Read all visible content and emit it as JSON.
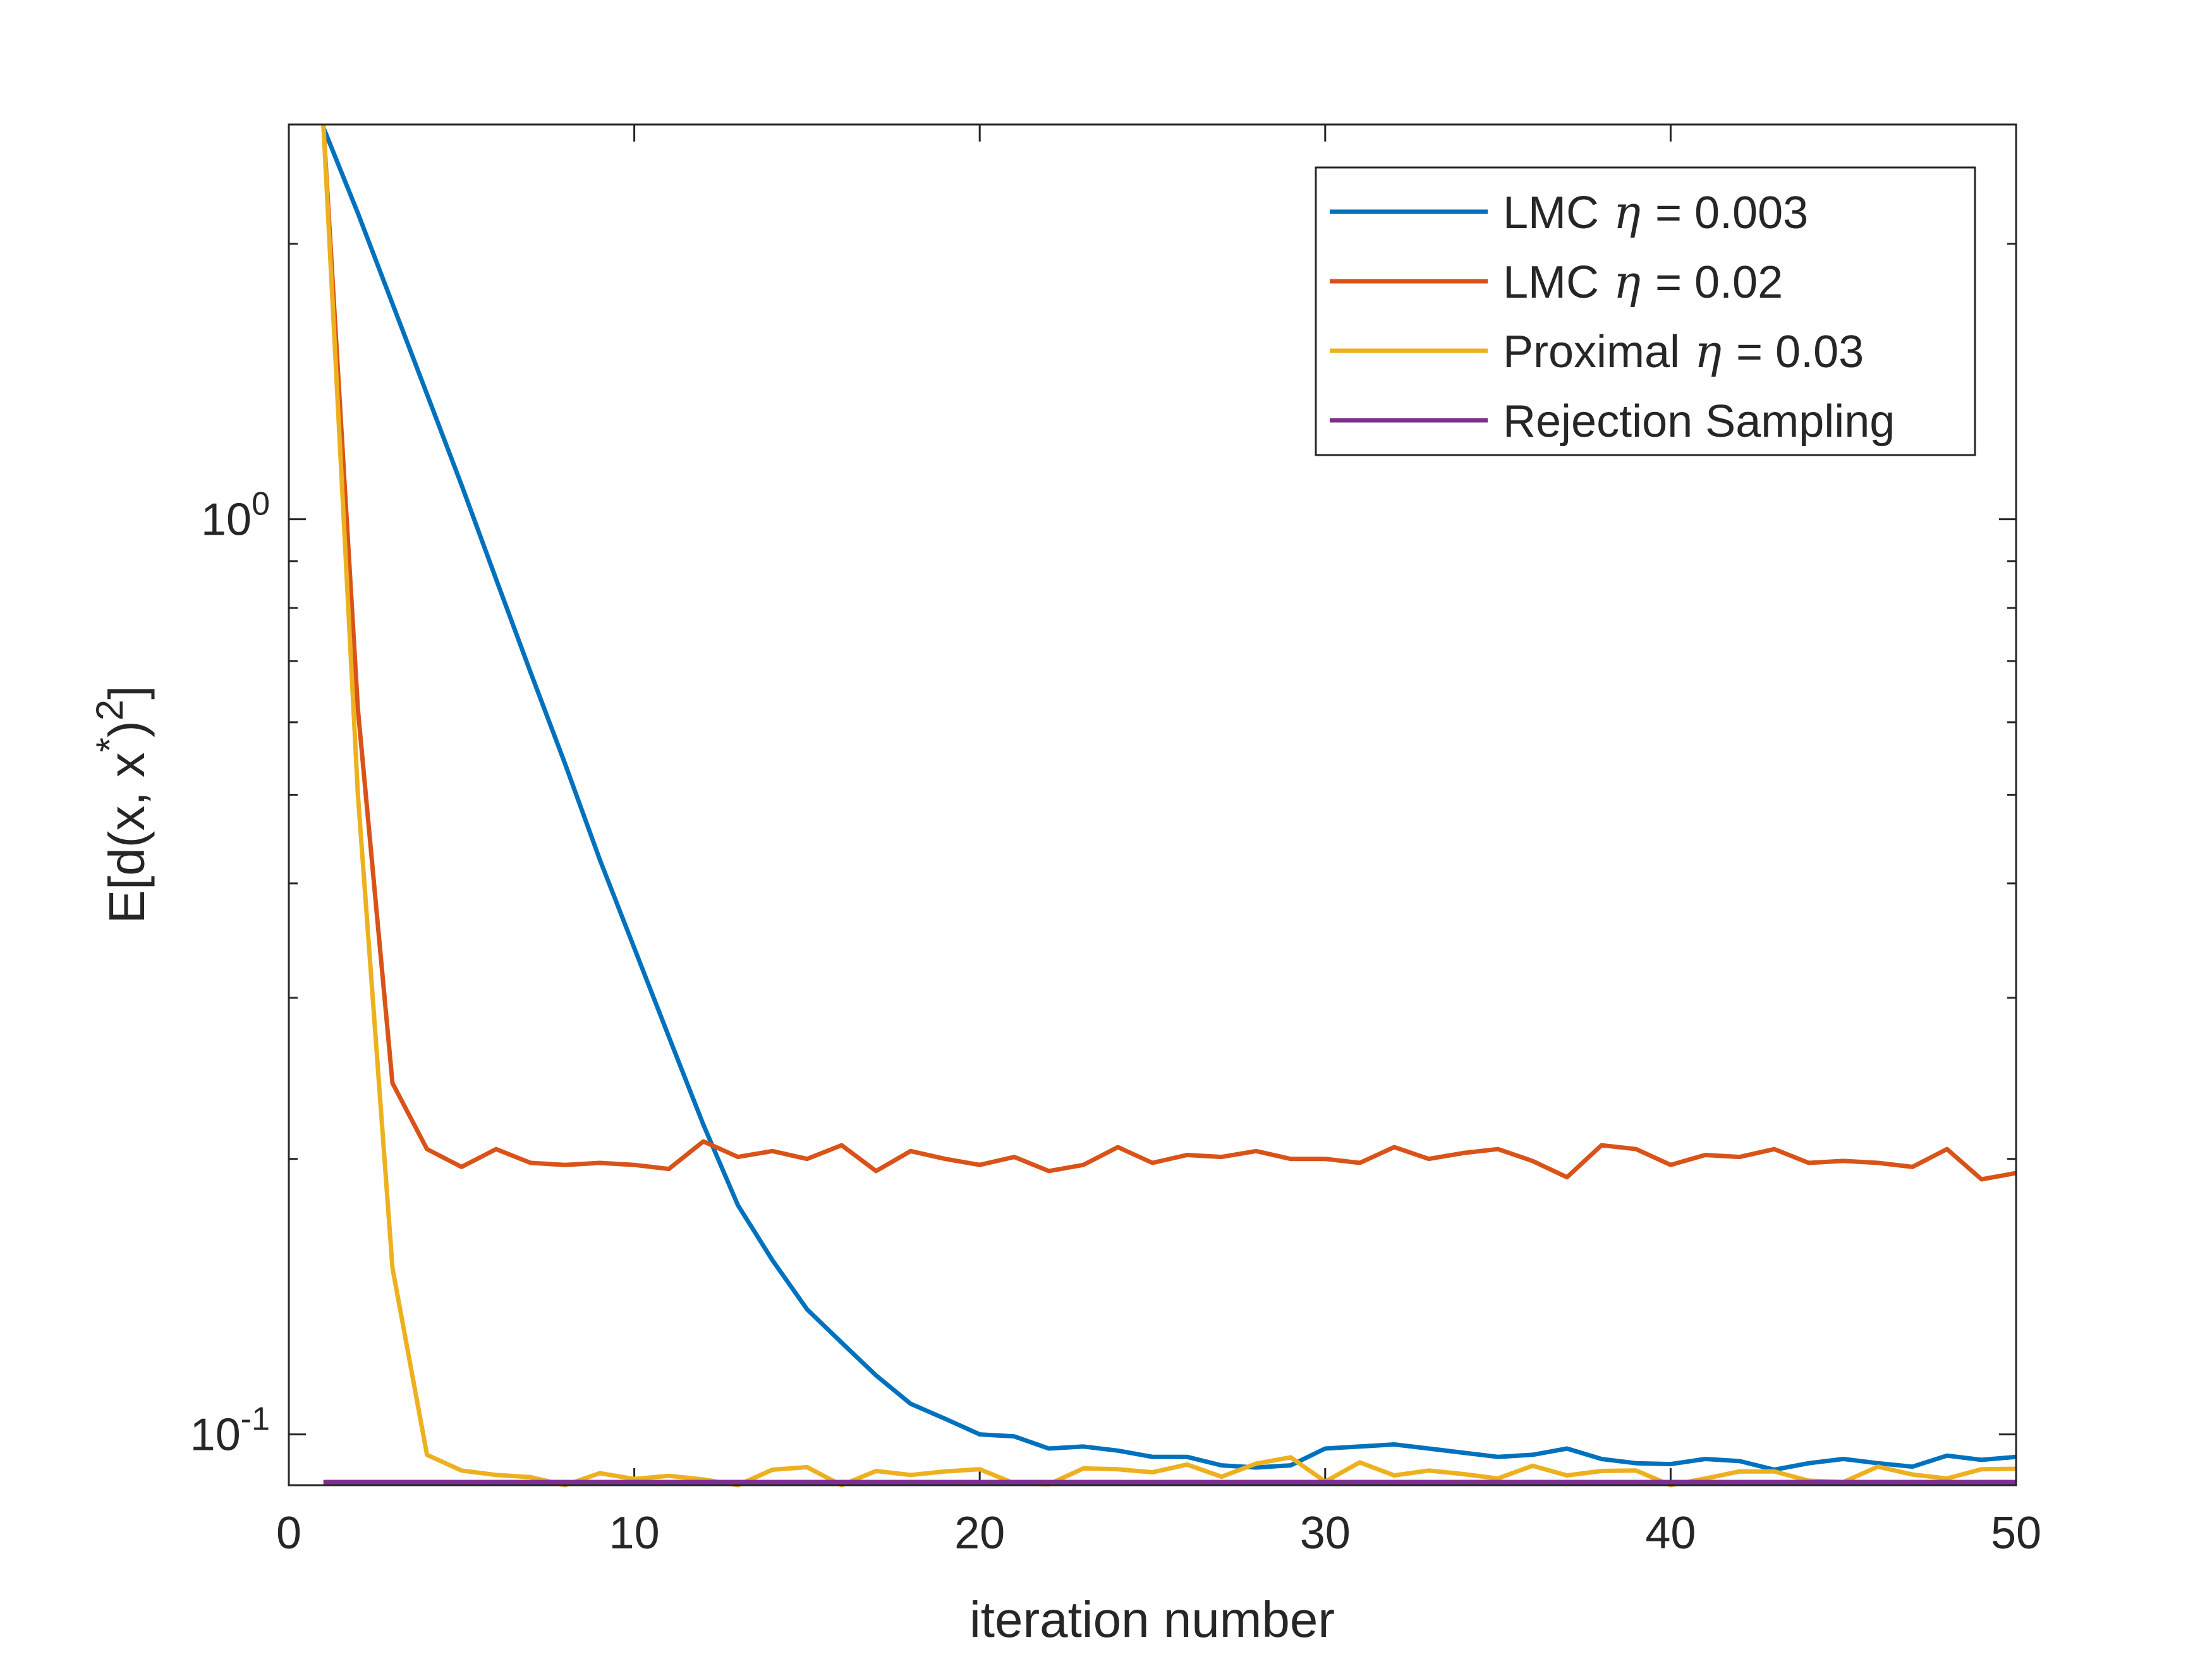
{
  "chart_data": {
    "type": "line",
    "title": "",
    "xlabel": "iteration number",
    "ylabel_parts": {
      "prefix": "E[d(x, x",
      "star": "*",
      "close": ")",
      "power": "2",
      "suffix": "]"
    },
    "xlim": [
      0,
      50
    ],
    "ylim": [
      0.088,
      2.7
    ],
    "yscale": "log",
    "xticks": [
      0,
      10,
      20,
      30,
      40,
      50
    ],
    "xtick_labels": [
      "0",
      "10",
      "20",
      "30",
      "40",
      "50"
    ],
    "yticks_major": [
      {
        "value": 1,
        "base": "10",
        "exp": "0"
      },
      {
        "value": 0.1,
        "base": "10",
        "exp": "-1"
      }
    ],
    "yticks_minor": [
      0.2,
      0.3,
      0.4,
      0.5,
      0.6,
      0.7,
      0.8,
      0.9,
      2
    ],
    "legend_position": "top-right",
    "series": [
      {
        "name": "LMC η = 0.003",
        "legend_pre": "LMC",
        "legend_sym": "η",
        "legend_post": "= 0.003",
        "color": "#0072BD",
        "x": [
          1,
          2,
          3,
          4,
          5,
          6,
          7,
          8,
          9,
          10,
          11,
          12,
          13,
          14,
          15,
          16,
          17,
          18,
          19,
          20,
          21,
          22,
          23,
          24,
          25,
          26,
          27,
          28,
          29,
          30,
          31,
          32,
          33,
          34,
          35,
          36,
          37,
          38,
          39,
          40,
          41,
          42,
          43,
          44,
          45,
          46,
          47,
          48,
          49,
          50
        ],
        "values": [
          2.68,
          2.16,
          1.72,
          1.37,
          1.09,
          0.86,
          0.68,
          0.54,
          0.425,
          0.34,
          0.272,
          0.218,
          0.178,
          0.155,
          0.137,
          0.126,
          0.116,
          0.108,
          0.104,
          0.1,
          0.0995,
          0.0965,
          0.097,
          0.096,
          0.0945,
          0.0945,
          0.0925,
          0.092,
          0.0925,
          0.0965,
          0.097,
          0.0975,
          0.0965,
          0.0955,
          0.0945,
          0.095,
          0.0965,
          0.094,
          0.093,
          0.0928,
          0.094,
          0.0935,
          0.0915,
          0.093,
          0.094,
          0.093,
          0.0922,
          0.0948,
          0.0938,
          0.0945
        ]
      },
      {
        "name": "LMC η = 0.02",
        "legend_pre": "LMC",
        "legend_sym": "η",
        "legend_post": "= 0.02",
        "color": "#D95319",
        "x": [
          1,
          2,
          3,
          4,
          5,
          6,
          7,
          8,
          9,
          10,
          11,
          12,
          13,
          14,
          15,
          16,
          17,
          18,
          19,
          20,
          21,
          22,
          23,
          24,
          25,
          26,
          27,
          28,
          29,
          30,
          31,
          32,
          33,
          34,
          35,
          36,
          37,
          38,
          39,
          40,
          41,
          42,
          43,
          44,
          45,
          46,
          47,
          48,
          49,
          50
        ],
        "values": [
          2.9,
          0.62,
          0.242,
          0.205,
          0.196,
          0.205,
          0.198,
          0.197,
          0.198,
          0.197,
          0.195,
          0.209,
          0.201,
          0.204,
          0.2,
          0.207,
          0.194,
          0.204,
          0.2,
          0.197,
          0.201,
          0.194,
          0.197,
          0.206,
          0.198,
          0.202,
          0.201,
          0.204,
          0.2,
          0.2,
          0.198,
          0.206,
          0.2,
          0.203,
          0.205,
          0.199,
          0.191,
          0.207,
          0.205,
          0.197,
          0.202,
          0.201,
          0.205,
          0.198,
          0.199,
          0.198,
          0.196,
          0.205,
          0.19,
          0.193
        ]
      },
      {
        "name": "Proximal η = 0.03",
        "legend_pre": "Proximal",
        "legend_sym": "η",
        "legend_post": "= 0.03",
        "color": "#EDB120",
        "x": [
          1,
          2,
          3,
          4,
          5,
          6,
          7,
          8,
          9,
          10,
          11,
          12,
          13,
          14,
          15,
          16,
          17,
          18,
          19,
          20,
          21,
          22,
          23,
          24,
          25,
          26,
          27,
          28,
          29,
          30,
          31,
          32,
          33,
          34,
          35,
          36,
          37,
          38,
          39,
          40,
          41,
          42,
          43,
          44,
          45,
          46,
          47,
          48,
          49,
          50
        ],
        "values": [
          2.9,
          0.5,
          0.152,
          0.095,
          0.0913,
          0.0903,
          0.0898,
          0.0873,
          0.0907,
          0.0894,
          0.0901,
          0.0893,
          0.0874,
          0.0915,
          0.0921,
          0.0875,
          0.0912,
          0.0903,
          0.0911,
          0.0916,
          0.0884,
          0.0882,
          0.0918,
          0.0916,
          0.0909,
          0.0927,
          0.0899,
          0.0929,
          0.0944,
          0.0888,
          0.0932,
          0.0902,
          0.0913,
          0.0905,
          0.0895,
          0.0924,
          0.0902,
          0.0912,
          0.0913,
          0.0876,
          0.0895,
          0.0911,
          0.0911,
          0.089,
          0.0887,
          0.0922,
          0.0904,
          0.0895,
          0.0916,
          0.0917
        ]
      },
      {
        "name": "Rejection Sampling",
        "legend_pre": "Rejection Sampling",
        "legend_sym": "",
        "legend_post": "",
        "color": "#7E2F8E",
        "x": [
          1,
          50
        ],
        "values": [
          0.0887,
          0.0887
        ]
      }
    ]
  }
}
